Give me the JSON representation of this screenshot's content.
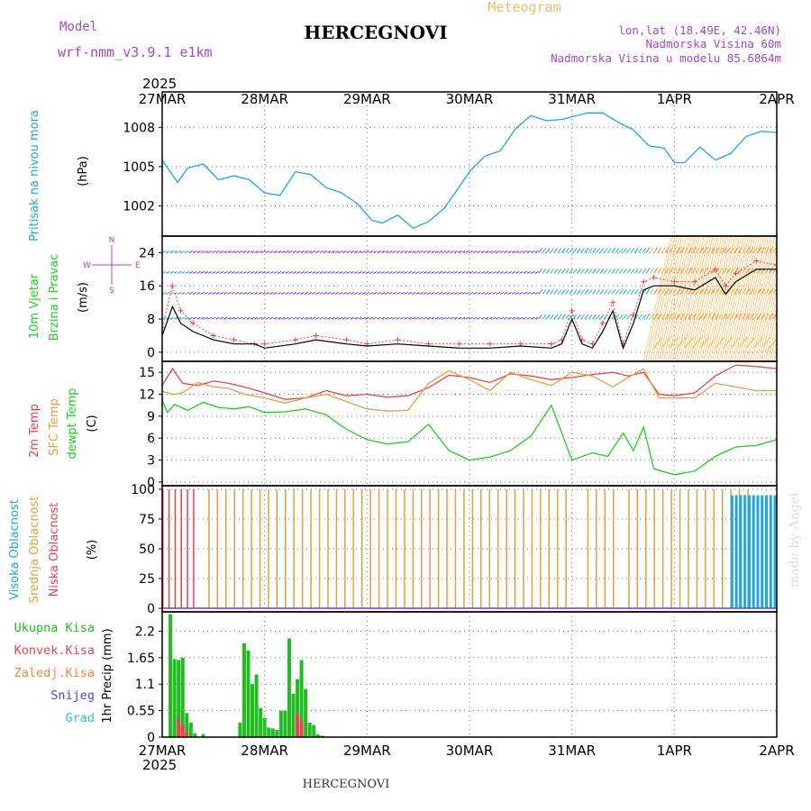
{
  "header": {
    "model_label": "Model",
    "model_name": "wrf-nmm_v3.9.1 e1km",
    "station": "HERCEGNOVI",
    "product": "Meteogram",
    "lonlat": "lon,lat (18.49E, 42.46N)",
    "elevation": "Nadmorska Visina 60m",
    "model_elevation": "Nadmorska Visina u modelu 85.6864m"
  },
  "footer": {
    "station": "HERCEGNOVI",
    "credit": "made by Angel"
  },
  "time_axis": {
    "year": "2025",
    "labels": [
      "27MAR",
      "28MAR",
      "29MAR",
      "30MAR",
      "31MAR",
      "1APR",
      "2APR"
    ]
  },
  "colors": {
    "pressure": "#1ea7e1",
    "temp2m": "#e8444c",
    "sfc_temp": "#e0a040",
    "dewpt": "#22cc22",
    "high_cloud": "#1ea7e1",
    "mid_cloud": "#e0a040",
    "low_cloud": "#e8444c",
    "total_precip": "#22bb22",
    "convective": "#e8444c",
    "freezing": "#ff8040",
    "snow": "#4848e0",
    "hail": "#28c8c8",
    "model": "#aa44cc",
    "product": "#e8c070",
    "wind_speed": "#000000",
    "wind_gust": "#e8444c"
  },
  "chart_data": [
    {
      "type": "line",
      "panel": "pressure",
      "ylabel_lines": [
        "Pritisak na nivou mora",
        "(hPa)"
      ],
      "yticks": [
        1002,
        1005,
        1008
      ],
      "ylim": [
        999.7,
        1010.7
      ],
      "xlim": [
        0,
        6
      ],
      "grid": true,
      "series": [
        {
          "name": "Pritisak na nivou mora",
          "x": [
            0,
            0.15,
            0.25,
            0.4,
            0.55,
            0.7,
            0.85,
            1.0,
            1.15,
            1.3,
            1.45,
            1.6,
            1.75,
            1.9,
            2.05,
            2.15,
            2.3,
            2.45,
            2.6,
            2.75,
            2.85,
            3.0,
            3.15,
            3.3,
            3.45,
            3.6,
            3.75,
            3.9,
            4.05,
            4.15,
            4.3,
            4.45,
            4.6,
            4.75,
            4.9,
            5.0,
            5.1,
            5.25,
            5.4,
            5.55,
            5.7,
            5.85,
            6.0
          ],
          "y": [
            1005.5,
            1003.8,
            1004.9,
            1005.2,
            1004.0,
            1004.3,
            1004.0,
            1003.0,
            1002.8,
            1004.6,
            1004.4,
            1003.4,
            1003.0,
            1002.2,
            1000.9,
            1000.7,
            1001.3,
            1000.3,
            1000.8,
            1001.8,
            1002.9,
            1004.6,
            1005.8,
            1006.2,
            1007.9,
            1008.9,
            1008.5,
            1008.6,
            1008.9,
            1009.1,
            1009.1,
            1008.4,
            1007.8,
            1006.6,
            1006.4,
            1005.3,
            1005.3,
            1006.5,
            1005.5,
            1006.0,
            1007.3,
            1007.7,
            1007.6
          ]
        }
      ]
    },
    {
      "type": "line",
      "panel": "wind",
      "ylabel_lines": [
        "10m Vjetar",
        "Brzina i Pravac",
        "(m/s)"
      ],
      "compass": [
        "N",
        "W",
        "E",
        "S"
      ],
      "yticks": [
        0,
        8,
        16,
        24
      ],
      "ylim": [
        -2.2,
        28
      ],
      "xlim": [
        0,
        6
      ],
      "grid": true,
      "series": [
        {
          "name": "Brzina",
          "x": [
            0,
            0.1,
            0.18,
            0.3,
            0.5,
            0.7,
            0.9,
            1.0,
            1.3,
            1.5,
            1.8,
            2.0,
            2.3,
            2.6,
            2.9,
            3.2,
            3.5,
            3.8,
            3.9,
            4.0,
            4.1,
            4.2,
            4.3,
            4.4,
            4.5,
            4.6,
            4.7,
            4.8,
            5.0,
            5.2,
            5.4,
            5.5,
            5.6,
            5.8,
            6.0
          ],
          "y": [
            4,
            11,
            7,
            5,
            3,
            2,
            2,
            1,
            2,
            3,
            2,
            1.5,
            2,
            1.5,
            1,
            1,
            1.5,
            1,
            2,
            8,
            2,
            1,
            5,
            10,
            1,
            7,
            15,
            16,
            16,
            15,
            18,
            14,
            17,
            20,
            20
          ]
        },
        {
          "name": "Udar",
          "x": [
            0,
            0.1,
            0.18,
            0.3,
            0.5,
            0.7,
            0.9,
            1.0,
            1.3,
            1.5,
            1.8,
            2.0,
            2.3,
            2.6,
            2.9,
            3.2,
            3.5,
            3.8,
            3.9,
            4.0,
            4.1,
            4.2,
            4.3,
            4.4,
            4.5,
            4.6,
            4.7,
            4.8,
            5.0,
            5.2,
            5.4,
            5.5,
            5.6,
            5.8,
            6.0
          ],
          "y": [
            6,
            16,
            10,
            7,
            4,
            3,
            2,
            2,
            3,
            4,
            3,
            2,
            3,
            2,
            2,
            2,
            2,
            2,
            3,
            10,
            3,
            2,
            7,
            12,
            2,
            9,
            17,
            18,
            17,
            17,
            20,
            16,
            19,
            22,
            21
          ]
        }
      ]
    },
    {
      "type": "line",
      "panel": "temperature",
      "ylabel_lines": [
        "2m Temp",
        "SFC Temp",
        "dewpt Temp",
        "(C)"
      ],
      "yticks": [
        0,
        3,
        6,
        9,
        12,
        15
      ],
      "ylim": [
        -0.5,
        16.5
      ],
      "xlim": [
        0,
        6
      ],
      "grid": true,
      "series": [
        {
          "name": "2m Temp",
          "x": [
            0,
            0.1,
            0.2,
            0.35,
            0.5,
            0.65,
            0.8,
            1.0,
            1.2,
            1.4,
            1.6,
            1.8,
            2.0,
            2.2,
            2.4,
            2.6,
            2.8,
            3.0,
            3.2,
            3.4,
            3.6,
            3.8,
            4.0,
            4.2,
            4.4,
            4.55,
            4.7,
            4.85,
            5.0,
            5.2,
            5.4,
            5.6,
            5.8,
            6.0
          ],
          "y": [
            13.2,
            15.5,
            13.5,
            13.2,
            13.8,
            13.5,
            13.0,
            12.2,
            11.3,
            11.5,
            12.5,
            11.8,
            12.0,
            11.6,
            11.8,
            12.9,
            14.6,
            14.3,
            13.6,
            14.8,
            14.5,
            14.0,
            14.3,
            14.7,
            15.0,
            14.5,
            15.0,
            12.0,
            11.8,
            12.2,
            14.5,
            16.0,
            15.8,
            15.5
          ]
        },
        {
          "name": "SFC Temp",
          "x": [
            0,
            0.1,
            0.2,
            0.35,
            0.5,
            0.65,
            0.8,
            1.0,
            1.2,
            1.4,
            1.6,
            1.8,
            2.0,
            2.2,
            2.4,
            2.6,
            2.8,
            3.0,
            3.2,
            3.4,
            3.6,
            3.8,
            4.0,
            4.2,
            4.4,
            4.55,
            4.7,
            4.85,
            5.0,
            5.2,
            5.4,
            5.6,
            5.8,
            6.0
          ],
          "y": [
            12.4,
            12.0,
            12.2,
            13.6,
            13.0,
            12.8,
            12.0,
            11.5,
            10.8,
            11.5,
            12.0,
            11.0,
            10.0,
            9.7,
            9.8,
            13.5,
            15.2,
            14.0,
            12.5,
            15.0,
            14.0,
            13.2,
            15.0,
            14.5,
            13.0,
            14.3,
            15.5,
            11.5,
            11.5,
            11.5,
            13.5,
            13.0,
            12.5,
            12.5
          ]
        },
        {
          "name": "dewpt Temp",
          "x": [
            0,
            0.05,
            0.12,
            0.25,
            0.4,
            0.55,
            0.7,
            0.85,
            1.0,
            1.2,
            1.4,
            1.6,
            1.8,
            2.0,
            2.2,
            2.4,
            2.6,
            2.8,
            3.0,
            3.2,
            3.4,
            3.6,
            3.8,
            4.0,
            4.2,
            4.35,
            4.5,
            4.6,
            4.7,
            4.8,
            5.0,
            5.2,
            5.4,
            5.6,
            5.8,
            6.0
          ],
          "y": [
            11.2,
            9.5,
            10.6,
            9.8,
            10.9,
            10.2,
            10.0,
            10.3,
            9.5,
            9.6,
            10.0,
            9.2,
            7.2,
            5.8,
            5.2,
            5.5,
            7.9,
            4.3,
            3.0,
            3.4,
            4.3,
            6.3,
            10.5,
            3.0,
            4.0,
            3.5,
            6.7,
            4.3,
            7.5,
            1.8,
            1.0,
            1.5,
            3.5,
            4.8,
            5.0,
            5.8
          ]
        }
      ]
    },
    {
      "type": "bar",
      "panel": "clouds",
      "ylabel_lines": [
        "Visoka Oblacnost",
        "Srednja Oblacnost",
        "Niska Oblacnost",
        "(%)"
      ],
      "yticks": [
        0,
        25,
        50,
        75,
        100
      ],
      "ylim": [
        -3,
        103
      ],
      "xlim": [
        0,
        6
      ],
      "grid": true,
      "segments": [
        {
          "name": "Srednja Oblacnost",
          "from": 0.45,
          "to": 4.0,
          "step": 0.083,
          "level": 100
        },
        {
          "name": "Srednja Oblacnost",
          "from": 4.15,
          "to": 4.42,
          "step": 0.083,
          "level": 100
        },
        {
          "name": "Srednja Oblacnost",
          "from": 4.55,
          "to": 5.75,
          "step": 0.083,
          "level": 100
        },
        {
          "name": "Visoka Oblacnost",
          "from": 5.55,
          "to": 6.0,
          "step": 0.042,
          "level": 95
        },
        {
          "name": "Niska Oblacnost",
          "from": 0.0,
          "to": 0.3,
          "step": 0.06,
          "level": 100
        }
      ]
    },
    {
      "type": "bar",
      "panel": "precip",
      "ylabel_lines": [
        "1hr Precip (mm)"
      ],
      "legend": [
        "Ukupna Kisa",
        "Konvek.Kisa",
        "Zaledj.Kisa",
        "Snijeg",
        "Grad"
      ],
      "yticks": [
        0,
        0.55,
        1.1,
        1.65,
        2.2
      ],
      "ylim": [
        0,
        2.6
      ],
      "xlim": [
        0,
        6
      ],
      "grid": true,
      "series": [
        {
          "name": "Ukupna Kisa",
          "x": [
            0.08,
            0.12,
            0.16,
            0.2,
            0.24,
            0.28,
            0.32,
            0.4,
            0.76,
            0.8,
            0.84,
            0.88,
            0.92,
            0.96,
            1.0,
            1.04,
            1.08,
            1.12,
            1.16,
            1.2,
            1.24,
            1.28,
            1.32,
            1.36,
            1.4,
            1.44,
            1.48,
            1.52,
            1.56
          ],
          "y": [
            2.55,
            1.62,
            1.6,
            1.65,
            0.5,
            0.3,
            0.08,
            0.06,
            0.3,
            1.95,
            1.8,
            1.1,
            1.3,
            0.6,
            0.4,
            0.2,
            0.18,
            0.15,
            0.55,
            0.55,
            2.05,
            0.9,
            1.2,
            1.6,
            1.0,
            0.3,
            0.25,
            0.06,
            0.03
          ]
        },
        {
          "name": "Konvek.Kisa",
          "x": [
            0.16,
            0.2,
            0.24,
            1.32,
            1.36
          ],
          "y": [
            0.4,
            0.25,
            0.1,
            0.5,
            0.35
          ]
        }
      ]
    }
  ]
}
